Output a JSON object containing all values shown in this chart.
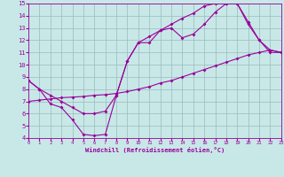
{
  "xlabel": "Windchill (Refroidissement éolien,°C)",
  "background_color": "#c8e8e8",
  "line_color": "#990099",
  "grid_color": "#99bbbb",
  "xlim": [
    0,
    23
  ],
  "ylim": [
    4,
    15
  ],
  "xticks": [
    0,
    1,
    2,
    3,
    4,
    5,
    6,
    7,
    8,
    9,
    10,
    11,
    12,
    13,
    14,
    15,
    16,
    17,
    18,
    19,
    20,
    21,
    22,
    23
  ],
  "yticks": [
    4,
    5,
    6,
    7,
    8,
    9,
    10,
    11,
    12,
    13,
    14,
    15
  ],
  "line1_x": [
    0,
    1,
    2,
    3,
    4,
    5,
    6,
    7,
    8,
    9,
    10,
    11,
    12,
    13,
    14,
    15,
    16,
    17,
    18,
    19,
    20,
    21,
    22,
    23
  ],
  "line1_y": [
    8.7,
    8.0,
    6.8,
    6.5,
    5.5,
    4.3,
    4.2,
    4.3,
    7.5,
    10.3,
    11.8,
    11.8,
    12.8,
    13.0,
    12.2,
    12.5,
    13.3,
    14.3,
    15.0,
    15.0,
    13.3,
    12.0,
    11.0,
    11.0
  ],
  "line2_x": [
    0,
    1,
    2,
    3,
    4,
    5,
    6,
    7,
    8,
    9,
    10,
    11,
    12,
    13,
    14,
    15,
    16,
    17,
    18,
    19,
    20,
    21,
    22,
    23
  ],
  "line2_y": [
    7.0,
    7.1,
    7.2,
    7.3,
    7.35,
    7.4,
    7.5,
    7.55,
    7.65,
    7.8,
    8.0,
    8.2,
    8.5,
    8.7,
    9.0,
    9.3,
    9.6,
    9.9,
    10.2,
    10.5,
    10.8,
    11.0,
    11.2,
    11.0
  ],
  "line3_x": [
    0,
    1,
    2,
    3,
    4,
    5,
    6,
    7,
    8,
    9,
    10,
    11,
    12,
    13,
    14,
    15,
    16,
    17,
    18,
    19,
    20,
    21,
    22,
    23
  ],
  "line3_y": [
    8.7,
    8.0,
    7.5,
    7.0,
    6.5,
    6.0,
    6.0,
    6.2,
    7.5,
    10.3,
    11.8,
    12.3,
    12.8,
    13.3,
    13.8,
    14.2,
    14.8,
    15.0,
    15.0,
    15.0,
    13.5,
    12.0,
    11.2,
    11.0
  ]
}
